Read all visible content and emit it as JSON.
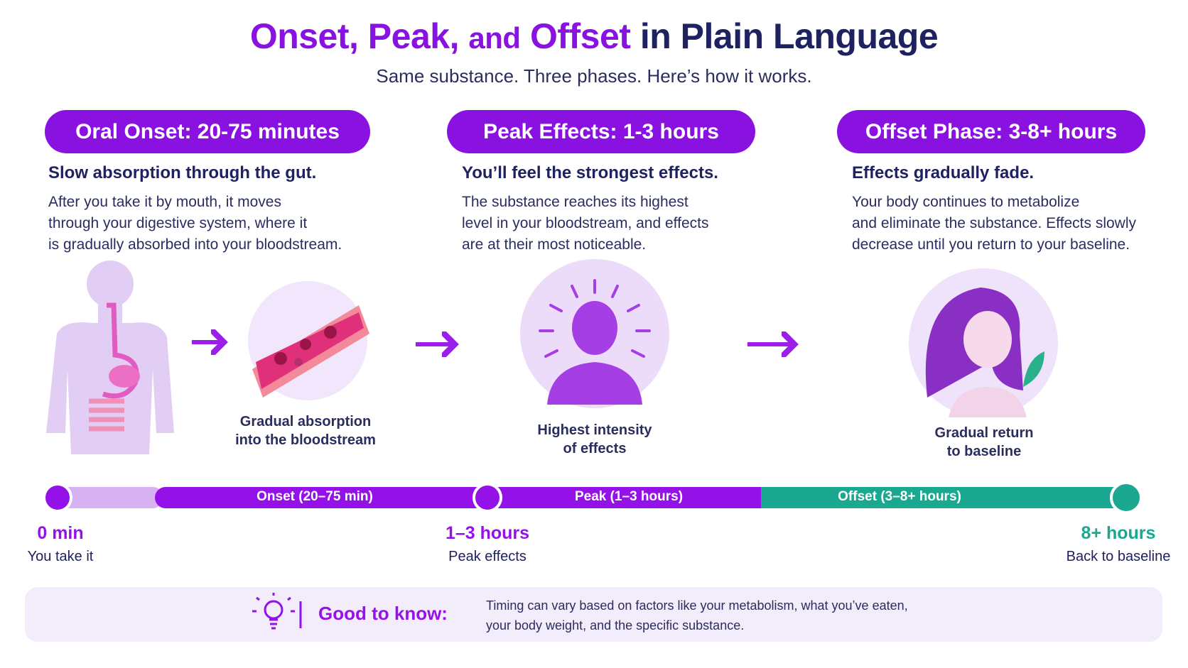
{
  "title": {
    "parts": [
      "Onset, Peak,",
      "and",
      "Offset",
      "in Plain Language"
    ]
  },
  "subtitle": "Same substance. Three phases. Here’s how it works.",
  "phases": [
    {
      "badge": "Oral Onset: 20-75 minutes",
      "heading": "Slow absorption through the gut.",
      "body": [
        "After you take it by mouth, it moves",
        "through your digestive system, where it",
        "is gradually absorbed into your bloodstream."
      ],
      "caption": [
        "Gradual absorption",
        "into the bloodstream"
      ]
    },
    {
      "badge": "Peak Effects: 1-3 hours",
      "heading": "You’ll feel the strongest effects.",
      "body": [
        "The substance reaches its highest",
        "level in your bloodstream, and effects",
        "are at their most noticeable."
      ],
      "caption": [
        "Highest intensity",
        "of effects"
      ]
    },
    {
      "badge": "Offset Phase: 3-8+ hours",
      "heading": "Effects gradually fade.",
      "body": [
        "Your body continues to metabolize",
        "and eliminate the substance. Effects slowly",
        "decrease until you return to your baseline."
      ],
      "caption": [
        "Gradual return",
        "to baseline"
      ]
    }
  ],
  "timeline": {
    "segments": [
      "Onset (20–75 min)",
      "Peak (1–3 hours)",
      "Offset (3–8+ hours)"
    ],
    "markers": [
      {
        "time": "0 min",
        "label": "You take it"
      },
      {
        "time": "1–3 hours",
        "label": "Peak effects"
      },
      {
        "time": "8+ hours",
        "label": "Back to baseline"
      }
    ]
  },
  "note": {
    "label": "Good to know:",
    "text": [
      "Timing can vary based on factors like your metabolism, what you’ve eaten,",
      "your body weight, and the specific substance."
    ]
  }
}
